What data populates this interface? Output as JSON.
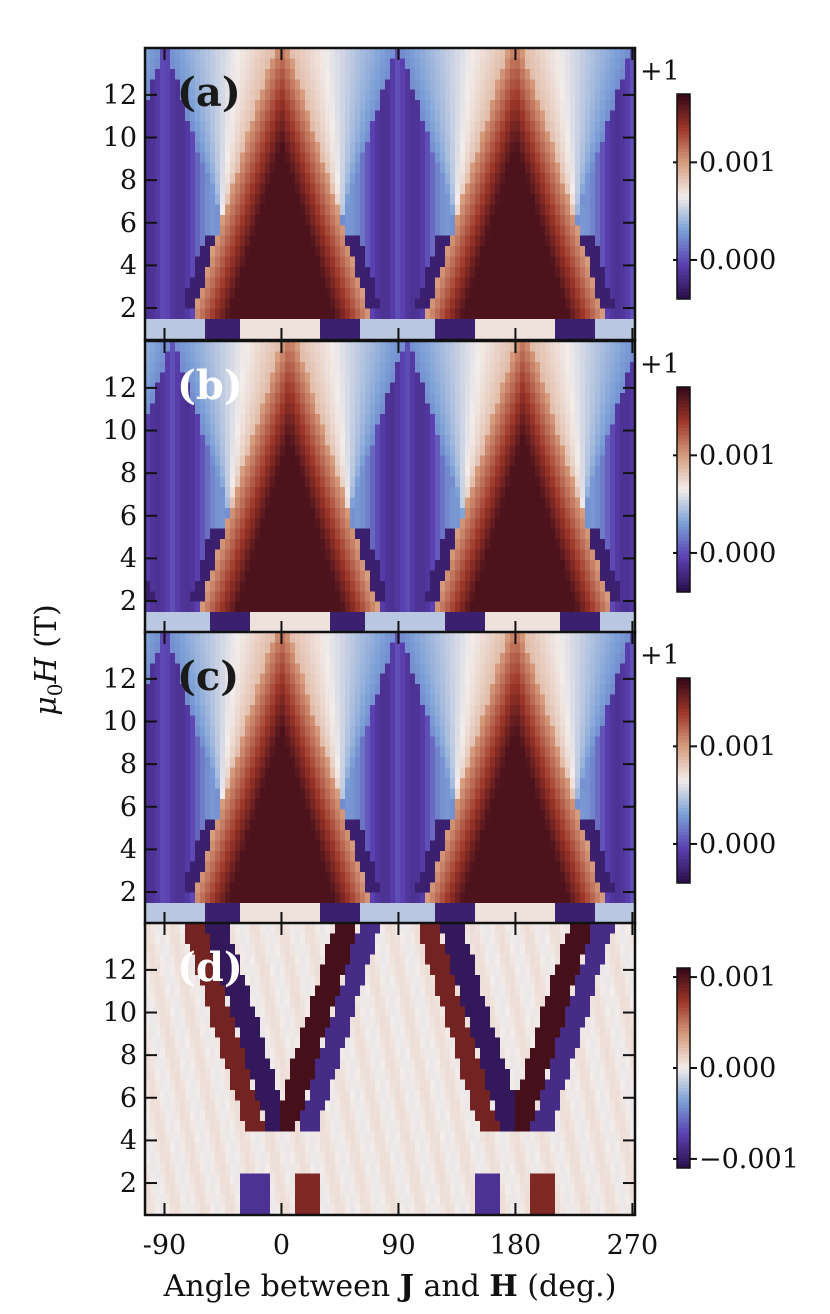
{
  "chart_data": [
    {
      "type": "heatmap",
      "panel_label": "(a)",
      "label_color": "#1a1a1a",
      "pattern": "diamond",
      "colorbar_offset": "+1",
      "colorbar_ticks": [
        {
          "label": "0.001",
          "value": 0.001
        },
        {
          "label": "0.000",
          "value": 0.0
        }
      ],
      "colorbar_range": [
        -0.0004,
        0.0017
      ]
    },
    {
      "type": "heatmap",
      "panel_label": "(b)",
      "label_color": "#ffffff",
      "pattern": "diamond-shifted",
      "colorbar_offset": "+1",
      "colorbar_ticks": [
        {
          "label": "0.001",
          "value": 0.001
        },
        {
          "label": "0.000",
          "value": 0.0
        }
      ],
      "colorbar_range": [
        -0.0004,
        0.0017
      ]
    },
    {
      "type": "heatmap",
      "panel_label": "(c)",
      "label_color": "#1a1a1a",
      "pattern": "diamond",
      "colorbar_offset": "+1",
      "colorbar_ticks": [
        {
          "label": "0.001",
          "value": 0.001
        },
        {
          "label": "0.000",
          "value": 0.0
        }
      ],
      "colorbar_range": [
        -0.0004,
        0.0017
      ]
    },
    {
      "type": "heatmap",
      "panel_label": "(d)",
      "label_color": "#ffffff",
      "pattern": "antisymmetric",
      "colorbar_offset": "",
      "colorbar_ticks": [
        {
          "label": "0.001",
          "value": 0.001
        },
        {
          "label": "0.000",
          "value": 0.0
        },
        {
          "label": "−0.001",
          "value": -0.001
        }
      ],
      "colorbar_range": [
        -0.0011,
        0.0011
      ]
    }
  ],
  "axes": {
    "xlabel_prefix": "Angle between ",
    "xlabel_j": "J",
    "xlabel_and": " and ",
    "xlabel_h": "H",
    "xlabel_suffix": " (deg.)",
    "ylabel": "μ₀H (T)",
    "xlim": [
      -105,
      272
    ],
    "ylim": [
      0.5,
      14.2
    ],
    "xticks": [
      {
        "label": "-90",
        "value": -90
      },
      {
        "label": "0",
        "value": 0
      },
      {
        "label": "90",
        "value": 90
      },
      {
        "label": "180",
        "value": 180
      },
      {
        "label": "270",
        "value": 270
      }
    ],
    "yticks": [
      {
        "label": "2",
        "value": 2
      },
      {
        "label": "4",
        "value": 4
      },
      {
        "label": "6",
        "value": 6
      },
      {
        "label": "8",
        "value": 8
      },
      {
        "label": "10",
        "value": 10
      },
      {
        "label": "12",
        "value": 12
      }
    ]
  },
  "colormap": [
    "#2a0f4a",
    "#5a3fb0",
    "#7b9fd6",
    "#f2ecea",
    "#d69b7c",
    "#9c3528",
    "#330818"
  ]
}
